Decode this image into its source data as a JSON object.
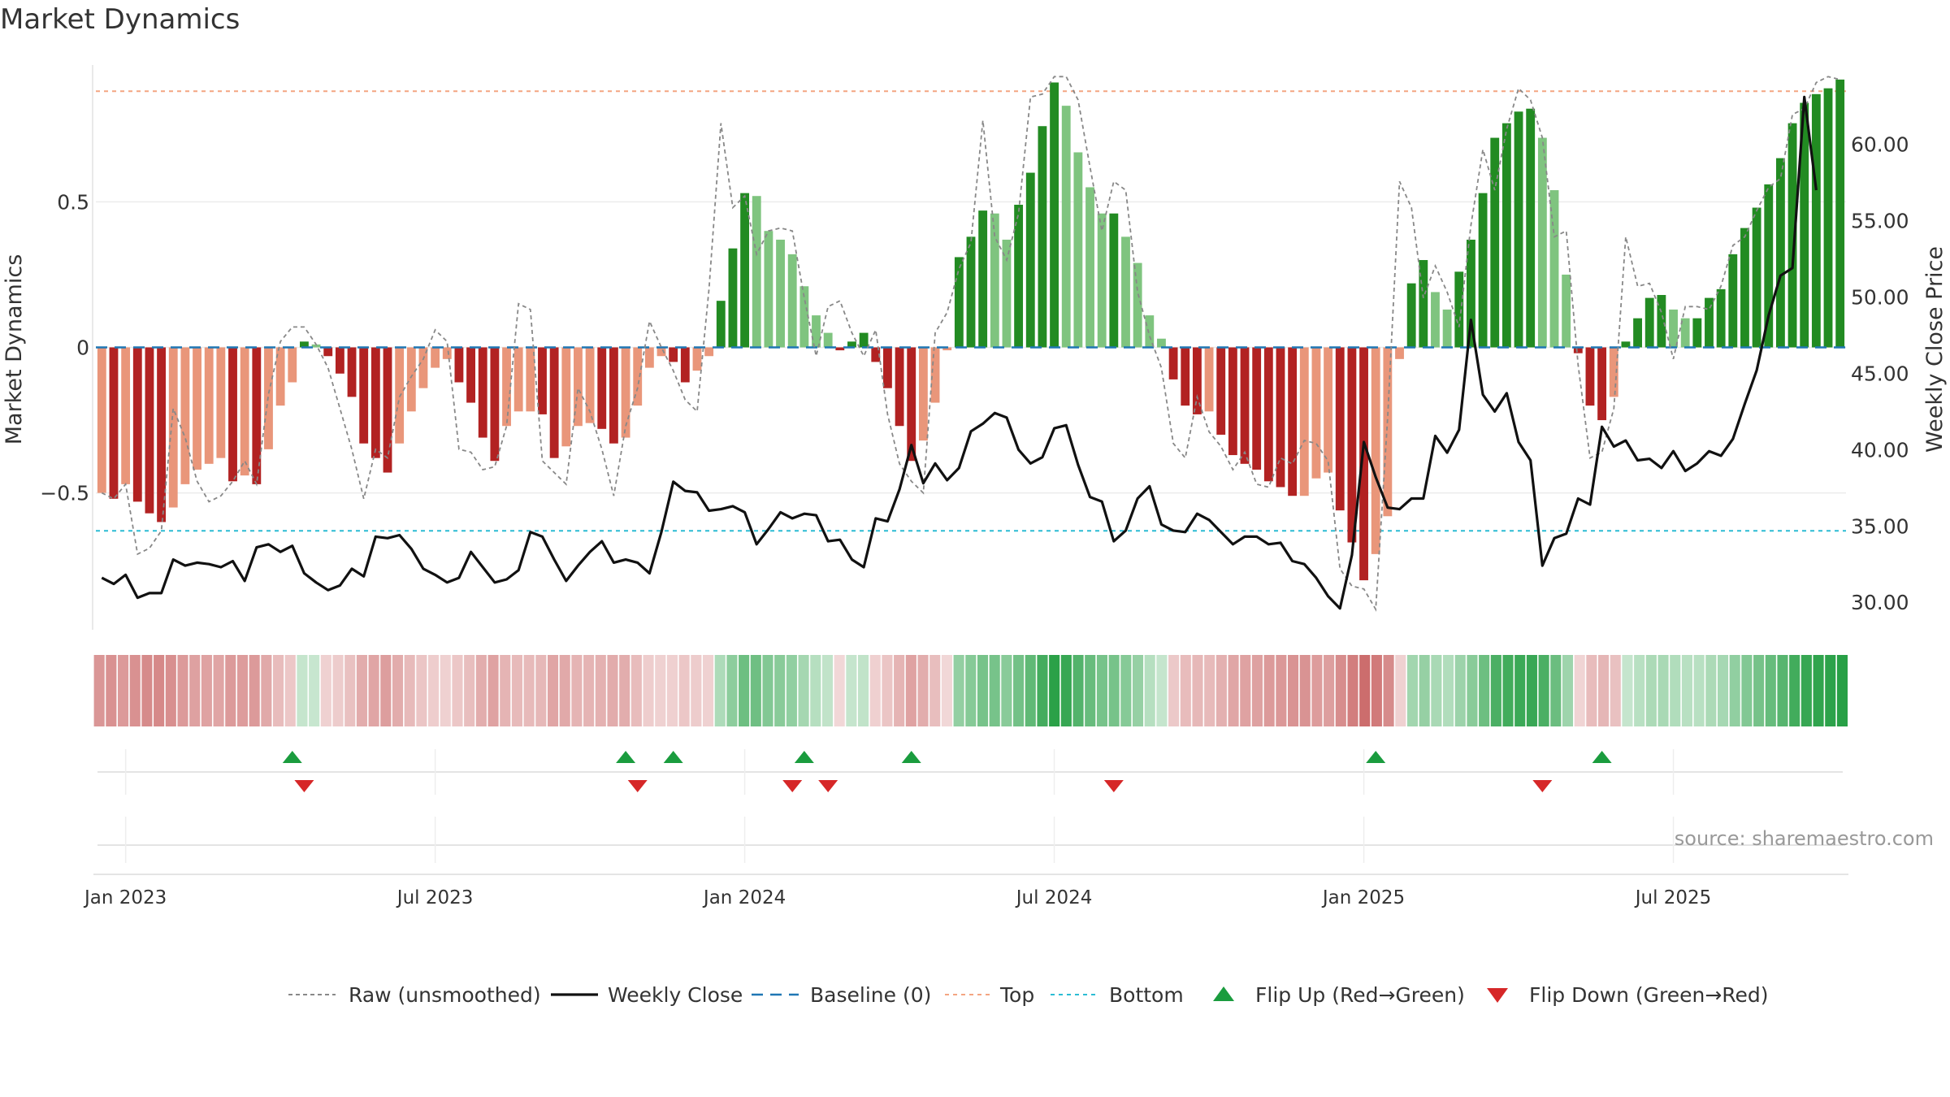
{
  "title": "Market Dynamics",
  "source": "source: sharemaestro.com",
  "colors": {
    "strong_green": "#228b22",
    "light_green": "#7fc47f",
    "strong_red": "#b22222",
    "light_red": "#e9967a",
    "raw": "#888888",
    "close": "#111111",
    "baseline": "#1f77b4",
    "top": "#f4a582",
    "bottom": "#2bbcd4",
    "flip_up": "#1a9c3e",
    "flip_down": "#d62728"
  },
  "chart_data": {
    "type": "bar",
    "x_axis": {
      "ticks": [
        "Jan 2023",
        "Jul 2023",
        "Jan 2024",
        "Jul 2024",
        "Jan 2025",
        "Jul 2025"
      ],
      "tick_week_index": [
        2,
        28,
        54,
        80,
        106,
        132
      ]
    },
    "y_left": {
      "label": "Market Dynamics",
      "ticks": [
        0.5,
        0,
        -0.5
      ],
      "tick_labels": [
        "0.5",
        "0",
        "−0.5"
      ],
      "range": [
        -0.97,
        0.97
      ]
    },
    "y_right": {
      "label": "Weekly Close Price",
      "ticks": [
        30,
        35,
        40,
        45,
        50,
        55,
        60
      ],
      "tick_labels": [
        "30.00",
        "35.00",
        "40.00",
        "45.00",
        "50.00",
        "55.00",
        "60.00"
      ],
      "range": [
        28.2,
        65.2
      ]
    },
    "reference_lines": {
      "top": 0.88,
      "bottom": -0.63,
      "baseline": 0
    },
    "legend": {
      "position": "bottom",
      "items": [
        "Raw (unsmoothed)",
        "Weekly Close",
        "Baseline (0)",
        "Top",
        "Bottom",
        "Flip Up (Red→Green)",
        "Flip Down (Green→Red)"
      ]
    },
    "series": [
      {
        "name": "Market Dynamics",
        "values": [
          -0.5,
          -0.52,
          -0.47,
          -0.53,
          -0.57,
          -0.6,
          -0.55,
          -0.47,
          -0.42,
          -0.4,
          -0.38,
          -0.46,
          -0.44,
          -0.47,
          -0.35,
          -0.2,
          -0.12,
          0.02,
          0.01,
          -0.03,
          -0.09,
          -0.17,
          -0.33,
          -0.38,
          -0.43,
          -0.33,
          -0.22,
          -0.14,
          -0.07,
          -0.04,
          -0.12,
          -0.19,
          -0.31,
          -0.39,
          -0.27,
          -0.22,
          -0.22,
          -0.23,
          -0.38,
          -0.34,
          -0.27,
          -0.26,
          -0.28,
          -0.33,
          -0.31,
          -0.2,
          -0.07,
          -0.03,
          -0.05,
          -0.12,
          -0.08,
          -0.03,
          0.16,
          0.34,
          0.53,
          0.52,
          0.4,
          0.37,
          0.32,
          0.21,
          0.11,
          0.05,
          -0.01,
          0.02,
          0.05,
          -0.05,
          -0.14,
          -0.27,
          -0.39,
          -0.32,
          -0.19,
          -0.01,
          0.31,
          0.38,
          0.47,
          0.46,
          0.37,
          0.49,
          0.6,
          0.76,
          0.91,
          0.83,
          0.67,
          0.55,
          0.46,
          0.46,
          0.38,
          0.29,
          0.11,
          0.03,
          -0.11,
          -0.2,
          -0.23,
          -0.22,
          -0.3,
          -0.37,
          -0.4,
          -0.42,
          -0.46,
          -0.48,
          -0.51,
          -0.51,
          -0.45,
          -0.43,
          -0.56,
          -0.67,
          -0.8,
          -0.71,
          -0.58,
          -0.04,
          0.22,
          0.3,
          0.19,
          0.13,
          0.26,
          0.37,
          0.53,
          0.72,
          0.77,
          0.81,
          0.82,
          0.72,
          0.54,
          0.25,
          -0.02,
          -0.2,
          -0.25,
          -0.17,
          0.02,
          0.1,
          0.17,
          0.18,
          0.13,
          0.1,
          0.1,
          0.17,
          0.2,
          0.32,
          0.41,
          0.48,
          0.56,
          0.65,
          0.77,
          0.84,
          0.87,
          0.89,
          0.92
        ]
      },
      {
        "name": "Raw (unsmoothed)",
        "values": [
          -0.5,
          -0.52,
          -0.47,
          -0.71,
          -0.69,
          -0.63,
          -0.21,
          -0.31,
          -0.46,
          -0.53,
          -0.51,
          -0.46,
          -0.39,
          -0.47,
          -0.16,
          0.02,
          0.07,
          0.07,
          0.01,
          -0.07,
          -0.21,
          -0.35,
          -0.52,
          -0.35,
          -0.38,
          -0.17,
          -0.1,
          -0.04,
          0.06,
          0.02,
          -0.35,
          -0.36,
          -0.42,
          -0.41,
          -0.27,
          0.15,
          0.13,
          -0.39,
          -0.43,
          -0.47,
          -0.14,
          -0.22,
          -0.35,
          -0.51,
          -0.27,
          -0.14,
          0.09,
          0,
          -0.08,
          -0.18,
          -0.22,
          0.2,
          0.77,
          0.48,
          0.52,
          0.32,
          0.4,
          0.41,
          0.4,
          0.17,
          -0.03,
          0.14,
          0.16,
          0.05,
          -0.03,
          0.06,
          -0.23,
          -0.4,
          -0.46,
          -0.5,
          0.05,
          0.12,
          0.27,
          0.36,
          0.78,
          0.38,
          0.3,
          0.46,
          0.86,
          0.87,
          0.93,
          0.93,
          0.85,
          0.62,
          0.4,
          0.57,
          0.54,
          0.19,
          0.04,
          -0.07,
          -0.33,
          -0.38,
          -0.17,
          -0.29,
          -0.34,
          -0.42,
          -0.36,
          -0.47,
          -0.48,
          -0.38,
          -0.4,
          -0.32,
          -0.33,
          -0.39,
          -0.76,
          -0.82,
          -0.83,
          -0.9,
          -0.24,
          0.57,
          0.48,
          0.17,
          0.28,
          0.19,
          0.07,
          0.42,
          0.68,
          0.54,
          0.75,
          0.89,
          0.85,
          0.72,
          0.38,
          0.4,
          -0.06,
          -0.38,
          -0.36,
          -0.21,
          0.38,
          0.21,
          0.22,
          0.12,
          -0.04,
          0.14,
          0.14,
          0.13,
          0.21,
          0.35,
          0.38,
          0.47,
          0.55,
          0.58,
          0.8,
          0.82,
          0.91,
          0.93,
          0.92
        ]
      },
      {
        "name": "Weekly Close",
        "values": [
          31.6,
          31.2,
          31.8,
          30.3,
          30.6,
          30.6,
          32.8,
          32.4,
          32.6,
          32.5,
          32.3,
          32.7,
          31.4,
          33.6,
          33.8,
          33.3,
          33.7,
          31.9,
          31.3,
          30.8,
          31.1,
          32.2,
          31.7,
          34.3,
          34.2,
          34.4,
          33.5,
          32.2,
          31.8,
          31.3,
          31.6,
          33.3,
          32.3,
          31.3,
          31.5,
          32.1,
          34.6,
          34.3,
          32.8,
          31.4,
          32.4,
          33.3,
          34,
          32.6,
          32.8,
          32.6,
          31.9,
          34.6,
          37.9,
          37.3,
          37.2,
          36,
          36.1,
          36.3,
          35.9,
          33.8,
          34.8,
          35.9,
          35.5,
          35.8,
          35.7,
          34,
          34.1,
          32.8,
          32.3,
          35.5,
          35.3,
          37.4,
          40.3,
          37.8,
          39.1,
          38,
          38.8,
          41.2,
          41.7,
          42.4,
          42.1,
          40,
          39.1,
          39.5,
          41.4,
          41.6,
          39,
          36.9,
          36.6,
          34,
          34.7,
          36.8,
          37.6,
          35.1,
          34.7,
          34.6,
          35.8,
          35.4,
          34.6,
          33.8,
          34.3,
          34.3,
          33.8,
          33.9,
          32.7,
          32.5,
          31.6,
          30.4,
          29.6,
          33.1,
          40.5,
          38.2,
          36.2,
          36.1,
          36.8,
          36.8,
          40.9,
          39.8,
          41.3,
          48.5,
          43.6,
          42.5,
          43.7,
          40.5,
          39.3,
          32.4,
          34.2,
          34.5,
          36.8,
          36.4,
          41.5,
          40.2,
          40.6,
          39.3,
          39.4,
          38.8,
          39.9,
          38.6,
          39.1,
          39.9,
          39.6,
          40.7,
          43,
          45.2,
          48.8,
          51.4,
          51.9,
          63.1,
          57
        ]
      }
    ],
    "flips_up_week_index": [
      16,
      44,
      48,
      59,
      68,
      107,
      126
    ],
    "flips_down_week_index": [
      17,
      45,
      58,
      61,
      85,
      121
    ]
  }
}
